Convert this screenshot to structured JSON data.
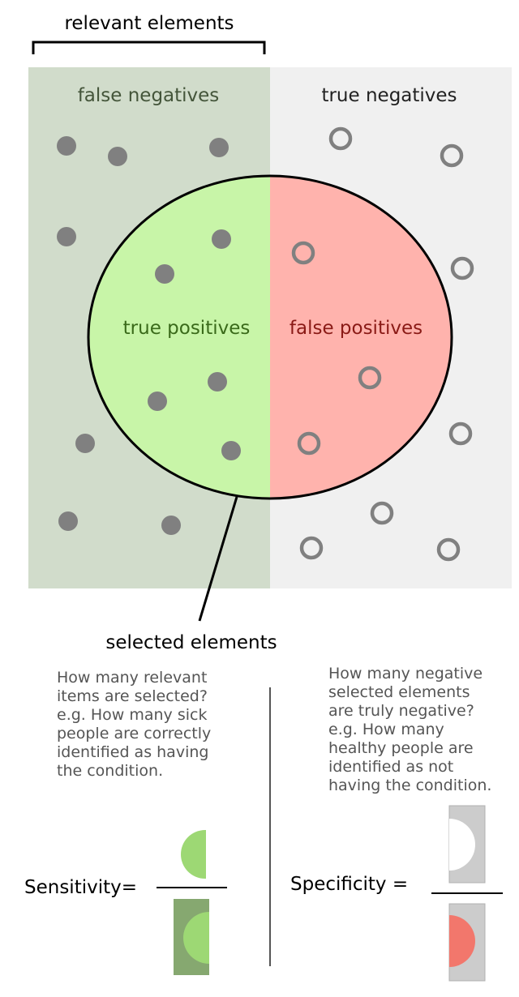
{
  "header": {
    "relevant_elements": "relevant elements"
  },
  "regions": {
    "false_negatives": "false negatives",
    "true_negatives": "true negatives",
    "true_positives": "true positives",
    "false_positives": "false positives"
  },
  "selected_elements": "selected elements",
  "sensitivity": {
    "label": "Sensitivity=",
    "lines": [
      "How many relevant",
      "items are selected?",
      "e.g. How many sick",
      "people are correctly",
      "identified as having",
      "the condition."
    ]
  },
  "specificity": {
    "label": "Specificity =",
    "lines": [
      "How many negative",
      "selected elements",
      "are truly negative?",
      "e.g. How many",
      "healthy people are",
      "identified as not",
      "having the condition."
    ]
  },
  "colors": {
    "relevant_bg": "#d1dccb",
    "negative_bg": "#f0f0f0",
    "true_positive": "#c8f5a8",
    "false_positive": "#ffb3ad",
    "dot": "#808080",
    "fn_text": "#44553a",
    "tp_text": "#3a6a1a",
    "fp_text": "#8a1a16"
  }
}
